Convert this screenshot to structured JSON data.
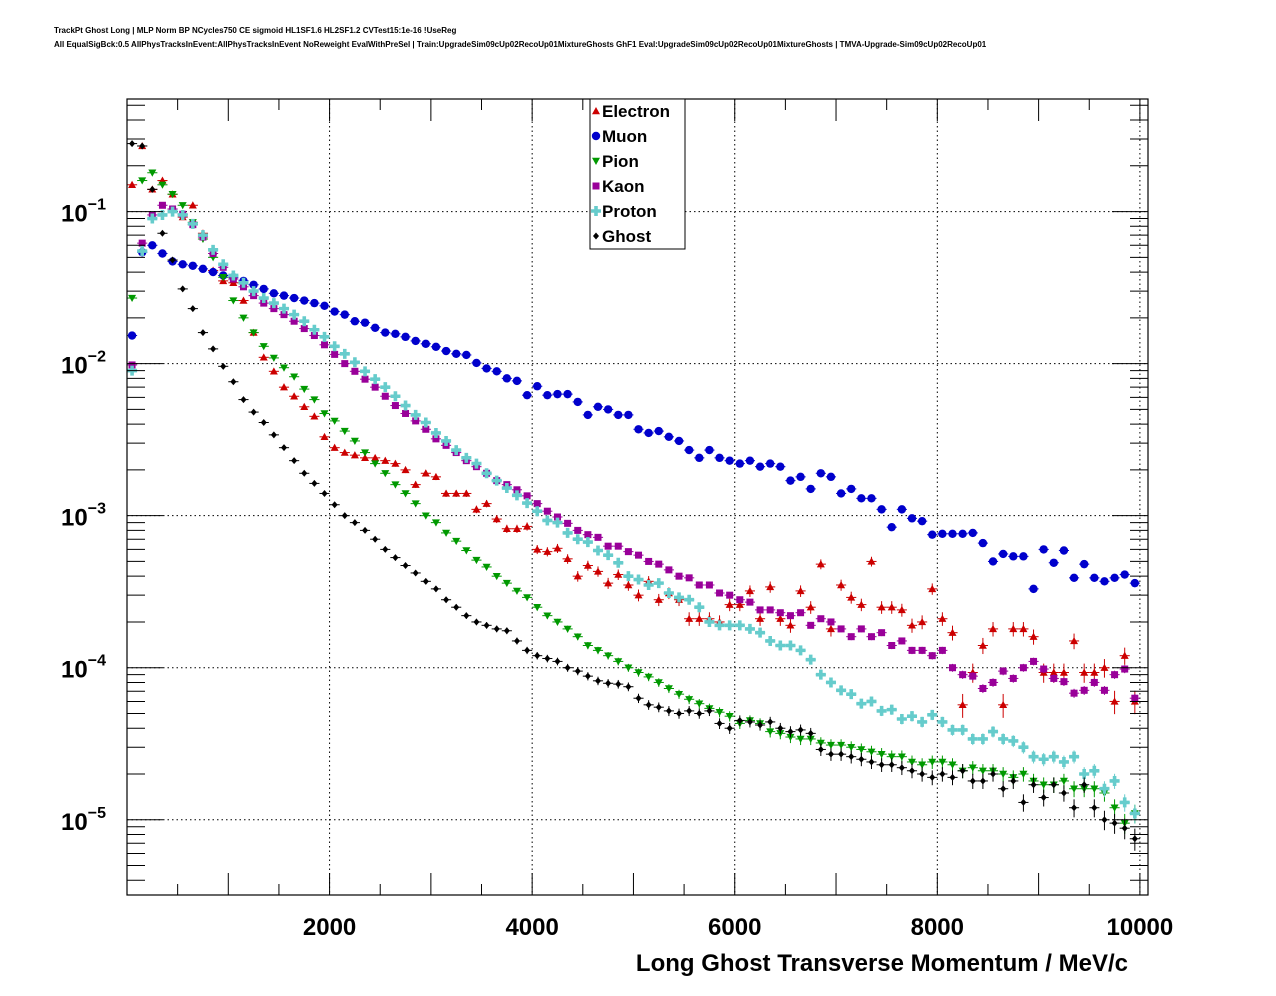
{
  "header": {
    "title_line1": "TrackPt Ghost Long | MLP Norm BP NCycles750 CE sigmoid HL1SF1.6 HL2SF1.2 CVTest15:1e-16 !UseReg",
    "title_line2": "All EqualSigBck:0.5 AllPhysTracksInEvent:AllPhysTracksInEvent NoReweight EvalWithPreSel | Train:UpgradeSim09cUp02RecoUp01MixtureGhosts GhF1 Eval:UpgradeSim09cUp02RecoUp01MixtureGhosts | TMVA-Upgrade-Sim09cUp02RecoUp01"
  },
  "chart_data": {
    "type": "scatter",
    "title": "",
    "xlabel": "Long Ghost Transverse Momentum / MeV/c",
    "ylabel": "",
    "xlim": [
      0,
      10080
    ],
    "ylim": [
      3.2e-06,
      0.55
    ],
    "yscale": "log",
    "grid": true,
    "legend_position": "top-center",
    "x_ticks": [
      2000,
      4000,
      6000,
      8000,
      10000
    ],
    "x_tick_labels": [
      "2000",
      "4000",
      "6000",
      "8000",
      "10000"
    ],
    "y_ticks": [
      1e-05,
      0.0001,
      0.001,
      0.01,
      0.1
    ],
    "y_tick_labels": [
      {
        "base": "10",
        "exp": "−5"
      },
      {
        "base": "10",
        "exp": "−4"
      },
      {
        "base": "10",
        "exp": "−3"
      },
      {
        "base": "10",
        "exp": "−2"
      },
      {
        "base": "10",
        "exp": "−1"
      }
    ],
    "bin_width": 100,
    "x": [
      50,
      150,
      250,
      350,
      450,
      550,
      650,
      750,
      850,
      950,
      1050,
      1150,
      1250,
      1350,
      1450,
      1550,
      1650,
      1750,
      1850,
      1950,
      2050,
      2150,
      2250,
      2350,
      2450,
      2550,
      2650,
      2750,
      2850,
      2950,
      3050,
      3150,
      3250,
      3350,
      3450,
      3550,
      3650,
      3750,
      3850,
      3950,
      4050,
      4150,
      4250,
      4350,
      4450,
      4550,
      4650,
      4750,
      4850,
      4950,
      5050,
      5150,
      5250,
      5350,
      5450,
      5550,
      5650,
      5750,
      5850,
      5950,
      6050,
      6150,
      6250,
      6350,
      6450,
      6550,
      6650,
      6750,
      6850,
      6950,
      7050,
      7150,
      7250,
      7350,
      7450,
      7550,
      7650,
      7750,
      7850,
      7950,
      8050,
      8150,
      8250,
      8350,
      8450,
      8550,
      8650,
      8750,
      8850,
      8950,
      9050,
      9150,
      9250,
      9350,
      9450,
      9550,
      9650,
      9750,
      9850,
      9950
    ],
    "series": [
      {
        "name": "Electron",
        "color": "#cc0000",
        "marker": "triangle-up",
        "values": [
          0.15,
          0.27,
          0.14,
          0.16,
          0.13,
          0.092,
          0.11,
          0.072,
          0.041,
          0.035,
          0.034,
          0.026,
          0.016,
          0.011,
          0.0089,
          0.007,
          0.0061,
          0.0052,
          0.0045,
          0.0033,
          0.0028,
          0.0026,
          0.0025,
          0.0024,
          0.0024,
          0.0023,
          0.0022,
          0.002,
          0.0016,
          0.0019,
          0.0018,
          0.0014,
          0.0014,
          0.0014,
          0.0011,
          0.0012,
          0.00095,
          0.00082,
          0.00082,
          0.00085,
          0.0006,
          0.00058,
          0.00061,
          0.00052,
          0.0004,
          0.00047,
          0.00043,
          0.00036,
          0.00041,
          0.00035,
          0.0003,
          0.00037,
          0.00028,
          0.00031,
          0.00028,
          0.00021,
          0.00021,
          0.00021,
          0.0002,
          0.00026,
          0.00026,
          0.00032,
          0.00021,
          0.00034,
          0.00021,
          0.00019,
          0.00032,
          0.00025,
          0.00048,
          0.00018,
          0.00035,
          0.00029,
          0.00026,
          0.0005,
          0.00025,
          0.00025,
          0.00024,
          0.00019,
          0.0002,
          0.00033,
          0.00021,
          0.00017,
          5.7e-05,
          9.3e-05,
          0.00014,
          0.00018,
          5.7e-05,
          0.00018,
          0.00018,
          0.00016,
          9.3e-05,
          9.3e-05,
          9.3e-05,
          0.00015,
          9.3e-05,
          9.3e-05,
          0.0001,
          6e-05,
          0.00012,
          6e-05
        ]
      },
      {
        "name": "Muon",
        "color": "#0000cc",
        "marker": "circle",
        "values": [
          0.0153,
          0.054,
          0.06,
          0.053,
          0.047,
          0.045,
          0.044,
          0.042,
          0.04,
          0.038,
          0.037,
          0.035,
          0.033,
          0.031,
          0.029,
          0.028,
          0.027,
          0.026,
          0.025,
          0.024,
          0.022,
          0.021,
          0.019,
          0.0186,
          0.0172,
          0.016,
          0.0157,
          0.015,
          0.0141,
          0.0135,
          0.0129,
          0.0121,
          0.0116,
          0.0114,
          0.0101,
          0.0093,
          0.0089,
          0.008,
          0.0077,
          0.0062,
          0.0071,
          0.0062,
          0.0063,
          0.0063,
          0.0056,
          0.0046,
          0.0052,
          0.005,
          0.0046,
          0.0046,
          0.0037,
          0.0035,
          0.0036,
          0.0033,
          0.0031,
          0.0027,
          0.0024,
          0.0027,
          0.0024,
          0.0023,
          0.0022,
          0.0023,
          0.0021,
          0.0022,
          0.0021,
          0.0017,
          0.0018,
          0.0015,
          0.0019,
          0.0018,
          0.0014,
          0.0015,
          0.0013,
          0.0013,
          0.0011,
          0.00084,
          0.0011,
          0.00096,
          0.00092,
          0.00075,
          0.00076,
          0.00076,
          0.00076,
          0.00077,
          0.00066,
          0.0005,
          0.00056,
          0.00054,
          0.00054,
          0.00033,
          0.0006,
          0.00049,
          0.00059,
          0.00039,
          0.00048,
          0.00039,
          0.00037,
          0.00039,
          0.00041,
          0.00036
        ]
      },
      {
        "name": "Pion",
        "color": "#009900",
        "marker": "triangle-down",
        "values": [
          0.027,
          0.16,
          0.18,
          0.15,
          0.13,
          0.11,
          0.085,
          0.066,
          0.05,
          0.037,
          0.026,
          0.02,
          0.016,
          0.013,
          0.0109,
          0.0094,
          0.0082,
          0.0068,
          0.0058,
          0.0047,
          0.0042,
          0.0036,
          0.0031,
          0.0026,
          0.0022,
          0.0019,
          0.0016,
          0.0014,
          0.0012,
          0.001,
          0.0009,
          0.00077,
          0.00068,
          0.00059,
          0.00051,
          0.00046,
          0.0004,
          0.00036,
          0.00032,
          0.00029,
          0.00025,
          0.00022,
          0.0002,
          0.00018,
          0.00016,
          0.00014,
          0.00013,
          0.00012,
          0.00011,
          0.0001,
          9.3e-05,
          8.7e-05,
          8e-05,
          7.3e-05,
          6.7e-05,
          6.2e-05,
          5.8e-05,
          5.4e-05,
          5.1e-05,
          4.8e-05,
          4.3e-05,
          4.5e-05,
          4.3e-05,
          3.8e-05,
          3.7e-05,
          3.5e-05,
          3.4e-05,
          3.4e-05,
          3.2e-05,
          3.1e-05,
          3.1e-05,
          3e-05,
          2.9e-05,
          2.8e-05,
          2.7e-05,
          2.6e-05,
          2.6e-05,
          2.4e-05,
          2.3e-05,
          2.4e-05,
          2.4e-05,
          2.3e-05,
          2.1e-05,
          2.2e-05,
          2.1e-05,
          2.1e-05,
          2e-05,
          1.9e-05,
          2e-05,
          1.8e-05,
          1.7e-05,
          1.7e-05,
          1.8e-05,
          1.6e-05,
          1.6e-05,
          1.6e-05,
          1.5e-05,
          1.2e-05,
          9.5e-06,
          1.1e-05
        ]
      },
      {
        "name": "Kaon",
        "color": "#990099",
        "marker": "square",
        "values": [
          0.0098,
          0.062,
          0.095,
          0.11,
          0.104,
          0.096,
          0.082,
          0.068,
          0.053,
          0.043,
          0.036,
          0.032,
          0.028,
          0.025,
          0.023,
          0.021,
          0.019,
          0.017,
          0.0153,
          0.0133,
          0.0115,
          0.01,
          0.0089,
          0.0079,
          0.007,
          0.0061,
          0.0053,
          0.0047,
          0.0042,
          0.0037,
          0.0032,
          0.0029,
          0.0026,
          0.0023,
          0.0021,
          0.0019,
          0.0017,
          0.0016,
          0.00148,
          0.00135,
          0.0012,
          0.00107,
          0.00098,
          0.00089,
          0.0008,
          0.00075,
          0.00072,
          0.00063,
          0.00063,
          0.00058,
          0.00055,
          0.0005,
          0.00048,
          0.00044,
          0.0004,
          0.00039,
          0.00035,
          0.00035,
          0.00031,
          0.0003,
          0.00028,
          0.00027,
          0.00024,
          0.00024,
          0.00023,
          0.00022,
          0.00023,
          0.00019,
          0.00021,
          0.0002,
          0.00018,
          0.00016,
          0.00018,
          0.00016,
          0.00017,
          0.00014,
          0.00015,
          0.00013,
          0.00013,
          0.00012,
          0.00013,
          0.0001,
          9e-05,
          8.8e-05,
          7.3e-05,
          8e-05,
          9.5e-05,
          8.5e-05,
          0.0001,
          0.00011,
          9.8e-05,
          8.5e-05,
          8.1e-05,
          6.8e-05,
          7.1e-05,
          8e-05,
          7.1e-05,
          9e-05,
          9.8e-05,
          6.3e-05
        ]
      },
      {
        "name": "Proton",
        "color": "#66cccc",
        "marker": "cross",
        "values": [
          0.009,
          0.055,
          0.09,
          0.095,
          0.1,
          0.095,
          0.083,
          0.07,
          0.056,
          0.045,
          0.038,
          0.034,
          0.03,
          0.027,
          0.025,
          0.023,
          0.021,
          0.019,
          0.0167,
          0.015,
          0.013,
          0.0116,
          0.0102,
          0.0089,
          0.0079,
          0.007,
          0.0061,
          0.0053,
          0.0046,
          0.0041,
          0.0035,
          0.0031,
          0.0027,
          0.0024,
          0.0022,
          0.0019,
          0.0017,
          0.00152,
          0.00136,
          0.00121,
          0.00107,
          0.00093,
          0.0009,
          0.00077,
          0.0007,
          0.00067,
          0.00059,
          0.00055,
          0.00049,
          0.0004,
          0.00038,
          0.00035,
          0.00036,
          0.00031,
          0.00029,
          0.00028,
          0.00025,
          0.0002,
          0.00019,
          0.00019,
          0.00019,
          0.00018,
          0.00017,
          0.00015,
          0.00014,
          0.00014,
          0.00013,
          0.000113,
          9e-05,
          8e-05,
          7.1e-05,
          6.7e-05,
          5.8e-05,
          6e-05,
          5.2e-05,
          5.3e-05,
          4.6e-05,
          4.8e-05,
          4.4e-05,
          4.9e-05,
          4.4e-05,
          3.9e-05,
          3.9e-05,
          3.4e-05,
          3.4e-05,
          3.8e-05,
          3.4e-05,
          3.3e-05,
          3e-05,
          2.6e-05,
          2.5e-05,
          2.6e-05,
          2.4e-05,
          2.6e-05,
          2e-05,
          2.1e-05,
          1.6e-05,
          1.8e-05,
          1.3e-05,
          1.1e-05
        ]
      },
      {
        "name": "Ghost",
        "color": "#000000",
        "marker": "diamond",
        "values": [
          0.28,
          0.27,
          0.14,
          0.072,
          0.048,
          0.031,
          0.023,
          0.016,
          0.0125,
          0.0096,
          0.0076,
          0.0058,
          0.0048,
          0.0041,
          0.0034,
          0.0028,
          0.0023,
          0.0019,
          0.00163,
          0.0014,
          0.00118,
          0.001,
          0.0009,
          0.0008,
          0.0007,
          0.0006,
          0.00053,
          0.00047,
          0.00042,
          0.00037,
          0.00033,
          0.00028,
          0.00025,
          0.00022,
          0.0002,
          0.00019,
          0.00018,
          0.000175,
          0.00015,
          0.00013,
          0.00012,
          0.000115,
          0.00011,
          0.0001,
          9.5e-05,
          8.8e-05,
          8.2e-05,
          7.9e-05,
          7.8e-05,
          7.5e-05,
          6.3e-05,
          5.7e-05,
          5.5e-05,
          5.2e-05,
          5e-05,
          5.2e-05,
          5e-05,
          5.2e-05,
          4.3e-05,
          4e-05,
          4.5e-05,
          4.4e-05,
          4.2e-05,
          4.4e-05,
          4e-05,
          3.8e-05,
          3.9e-05,
          3.7e-05,
          2.9e-05,
          2.7e-05,
          2.7e-05,
          2.6e-05,
          2.5e-05,
          2.4e-05,
          2.3e-05,
          2.3e-05,
          2.2e-05,
          2.1e-05,
          2e-05,
          1.9e-05,
          2e-05,
          1.9e-05,
          2.1e-05,
          1.8e-05,
          1.8e-05,
          2e-05,
          1.6e-05,
          1.8e-05,
          1.3e-05,
          1.7e-05,
          1.4e-05,
          1.7e-05,
          1.5e-05,
          1.2e-05,
          1.7e-05,
          1.2e-05,
          1e-05,
          9.5e-06,
          8.8e-06,
          7.5e-06
        ]
      }
    ]
  }
}
